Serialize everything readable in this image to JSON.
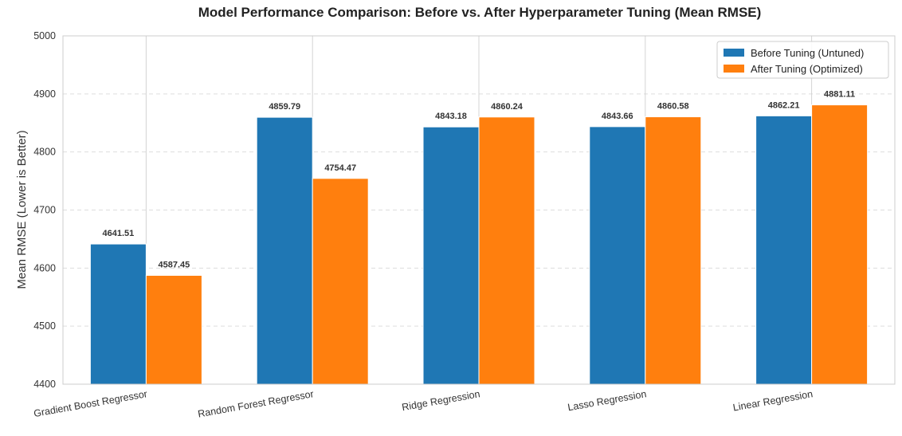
{
  "chart_data": {
    "type": "bar",
    "title": "Model Performance Comparison: Before vs. After Hyperparameter Tuning (Mean RMSE)",
    "xlabel": "",
    "ylabel": "Mean RMSE (Lower is Better)",
    "ylim": [
      4400,
      5000
    ],
    "yticks": [
      4400,
      4500,
      4600,
      4700,
      4800,
      4900,
      5000
    ],
    "categories": [
      "Gradient Boost Regressor",
      "Random Forest Regressor",
      "Ridge Regression",
      "Lasso Regression",
      "Linear Regression"
    ],
    "series": [
      {
        "name": "Before Tuning (Untuned)",
        "color": "#1f77b4",
        "values": [
          4641.51,
          4859.79,
          4843.18,
          4843.66,
          4862.21
        ]
      },
      {
        "name": "After Tuning (Optimized)",
        "color": "#ff7f0e",
        "values": [
          4587.45,
          4754.47,
          4860.24,
          4860.58,
          4881.11
        ]
      }
    ],
    "grid": true,
    "legend_position": "top-right",
    "data_labels": true,
    "xtick_rotation": "rotated"
  }
}
